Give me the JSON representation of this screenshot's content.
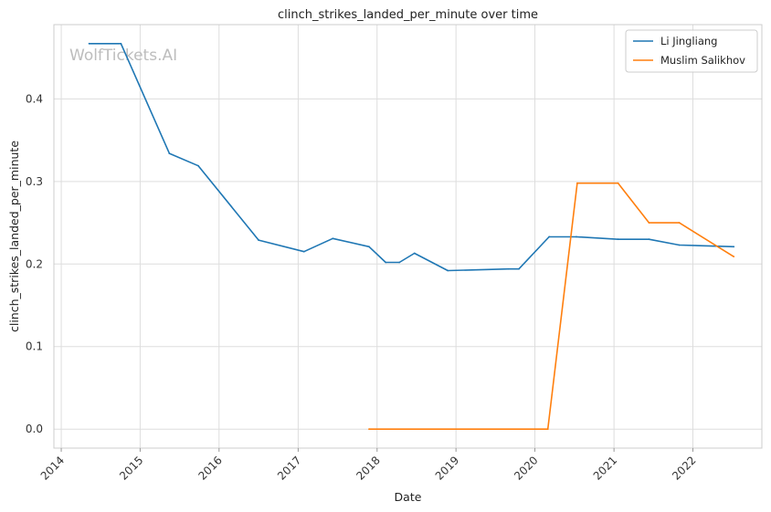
{
  "chart_data": {
    "type": "line",
    "title": "clinch_strikes_landed_per_minute over time",
    "xlabel": "Date",
    "ylabel": "clinch_strikes_landed_per_minute",
    "watermark": "WolfTickets.AI",
    "xlim": [
      "2013-11-28",
      "2022-11-16"
    ],
    "ylim": [
      -0.023,
      0.49
    ],
    "x_ticks": [
      "2014",
      "2015",
      "2016",
      "2017",
      "2018",
      "2019",
      "2020",
      "2021",
      "2022"
    ],
    "y_ticks": [
      0.0,
      0.1,
      0.2,
      0.3,
      0.4
    ],
    "y_tick_labels": [
      "0.0",
      "0.1",
      "0.2",
      "0.3",
      "0.4"
    ],
    "grid": true,
    "legend_position": "top-right",
    "series": [
      {
        "name": "Li Jingliang",
        "color": "#1f77b4",
        "points": [
          {
            "x": "2014-05-10",
            "y": 0.467
          },
          {
            "x": "2014-10-04",
            "y": 0.467
          },
          {
            "x": "2015-05-16",
            "y": 0.334
          },
          {
            "x": "2015-09-27",
            "y": 0.319
          },
          {
            "x": "2016-07-02",
            "y": 0.229
          },
          {
            "x": "2017-01-28",
            "y": 0.215
          },
          {
            "x": "2017-06-10",
            "y": 0.231
          },
          {
            "x": "2017-11-25",
            "y": 0.221
          },
          {
            "x": "2018-02-10",
            "y": 0.202
          },
          {
            "x": "2018-04-14",
            "y": 0.202
          },
          {
            "x": "2018-06-23",
            "y": 0.213
          },
          {
            "x": "2018-11-24",
            "y": 0.192
          },
          {
            "x": "2019-08-31",
            "y": 0.194
          },
          {
            "x": "2019-10-19",
            "y": 0.194
          },
          {
            "x": "2020-03-07",
            "y": 0.233
          },
          {
            "x": "2020-07-11",
            "y": 0.233
          },
          {
            "x": "2021-01-20",
            "y": 0.23
          },
          {
            "x": "2021-06-12",
            "y": 0.23
          },
          {
            "x": "2021-10-30",
            "y": 0.223
          },
          {
            "x": "2022-07-09",
            "y": 0.221
          }
        ]
      },
      {
        "name": "Muslim Salikhov",
        "color": "#ff7f0e",
        "points": [
          {
            "x": "2017-11-25",
            "y": 0.0
          },
          {
            "x": "2020-03-01",
            "y": 0.0
          },
          {
            "x": "2020-07-15",
            "y": 0.298
          },
          {
            "x": "2021-01-20",
            "y": 0.298
          },
          {
            "x": "2021-06-12",
            "y": 0.25
          },
          {
            "x": "2021-10-30",
            "y": 0.25
          },
          {
            "x": "2022-07-09",
            "y": 0.209
          }
        ]
      }
    ]
  }
}
